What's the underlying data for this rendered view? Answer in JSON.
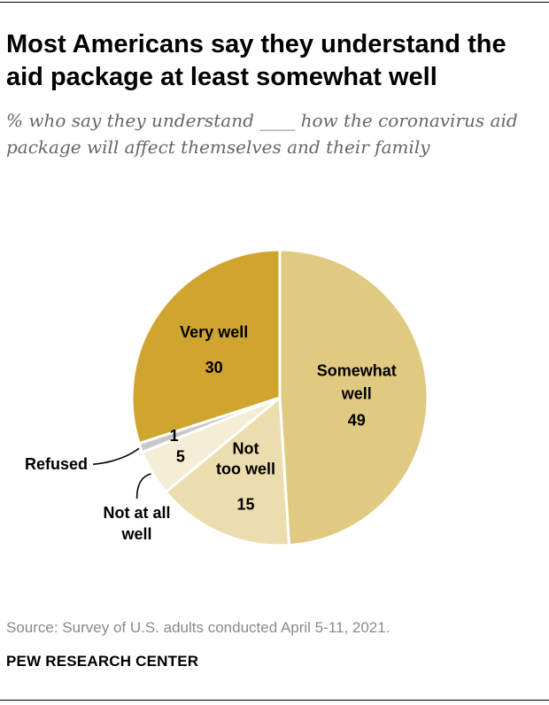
{
  "header": {
    "title": "Most Americans say they understand the aid package at least somewhat well",
    "subtitle": "% who say they understand ____ how the coronavirus aid package will affect themselves and their family"
  },
  "footer": {
    "source": "Source: Survey of U.S. adults conducted April 5-11, 2021.",
    "organization": "PEW RESEARCH CENTER"
  },
  "chart_data": {
    "type": "pie",
    "title": "Most Americans say they understand the aid package at least somewhat well",
    "start_at": "top, clockwise",
    "slices": [
      {
        "label": "Somewhat well",
        "label_lines": [
          "Somewhat",
          "well"
        ],
        "value": 49,
        "value_label": "49",
        "color": "#E0C980"
      },
      {
        "label": "Not too well",
        "label_lines": [
          "Not",
          "too well"
        ],
        "value": 15,
        "value_label": "15",
        "color": "#ECDDAE"
      },
      {
        "label": "Not at all well",
        "label_lines": [
          "Not at all",
          "well"
        ],
        "value": 5,
        "value_label": "5",
        "color": "#F5EDD5"
      },
      {
        "label": "Refused",
        "label_lines": [
          "Refused"
        ],
        "value": 1,
        "value_label": "1",
        "color": "#C8C8C8"
      },
      {
        "label": "Very well",
        "label_lines": [
          "Very well"
        ],
        "value": 30,
        "value_label": "30",
        "color": "#CFA52F"
      }
    ]
  }
}
